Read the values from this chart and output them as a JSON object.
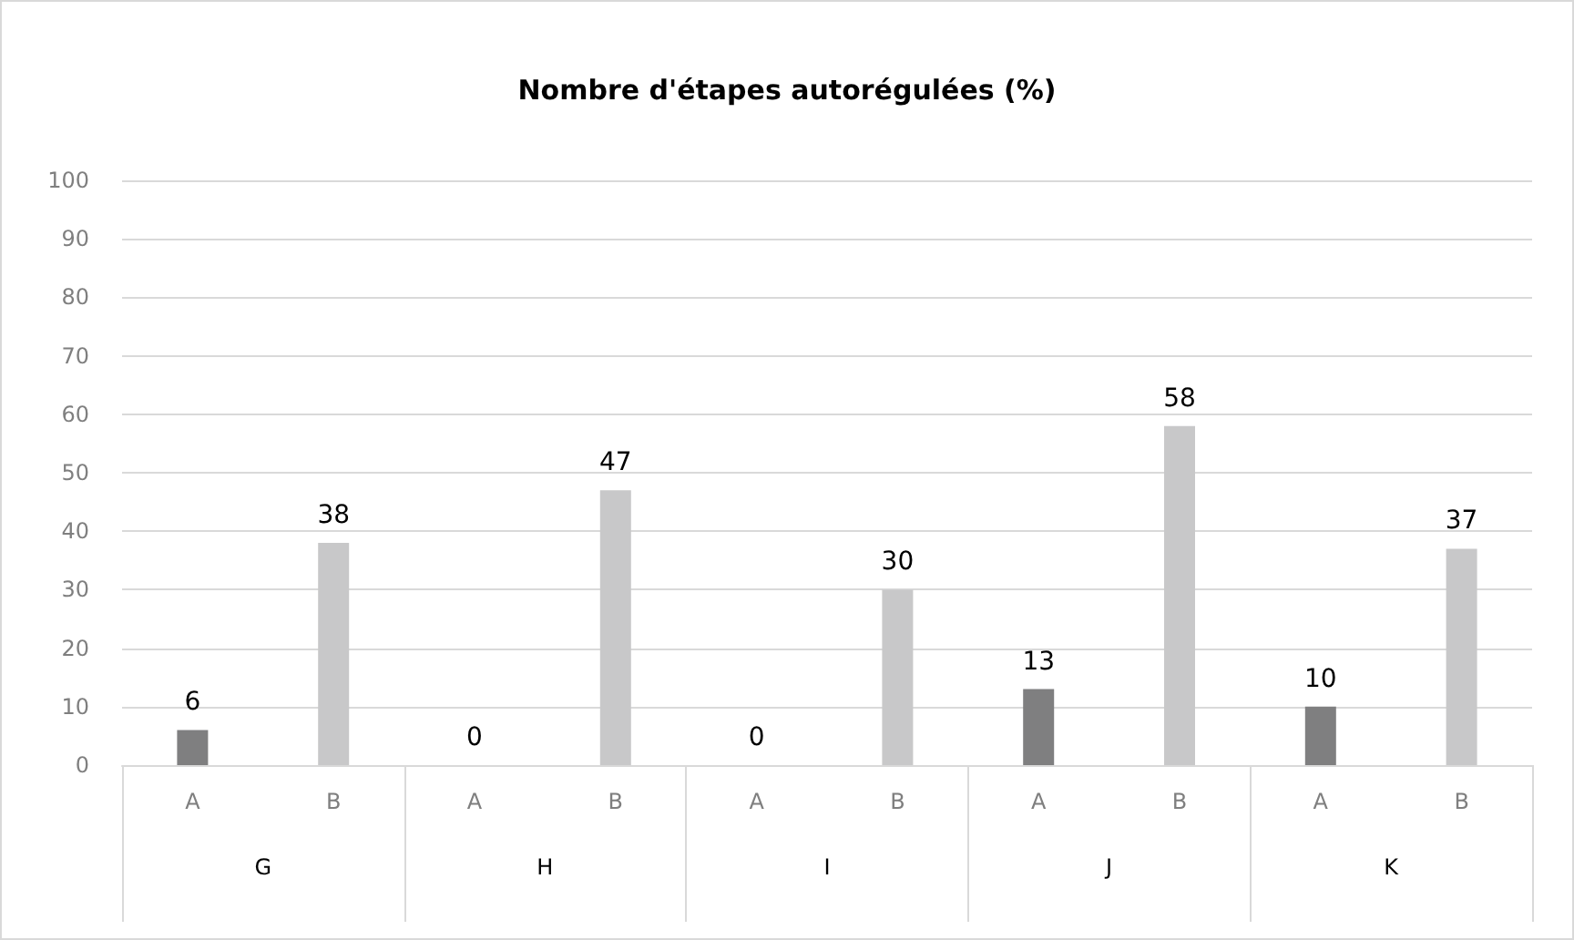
{
  "chart_data": {
    "type": "bar",
    "title": "Nombre d'étapes autorégulées (%)",
    "categories": [
      "A",
      "B",
      "A",
      "B",
      "A",
      "B",
      "A",
      "B",
      "A",
      "B"
    ],
    "values": [
      6,
      38,
      0,
      47,
      0,
      30,
      13,
      58,
      10,
      37
    ],
    "colors": [
      "#7f7f80",
      "#c8c8c9",
      "#7f7f80",
      "#c8c8c9",
      "#7f7f80",
      "#c8c8c9",
      "#7f7f80",
      "#c8c8c9",
      "#7f7f80",
      "#c8c8c9"
    ],
    "annotations": [
      "G",
      "H",
      "I",
      "J",
      "K"
    ],
    "ylim": [
      0,
      100
    ],
    "yticks": [
      0,
      10,
      20,
      30,
      40,
      50,
      60,
      70,
      80,
      90,
      100
    ],
    "grid": "y",
    "data_labels": true
  }
}
